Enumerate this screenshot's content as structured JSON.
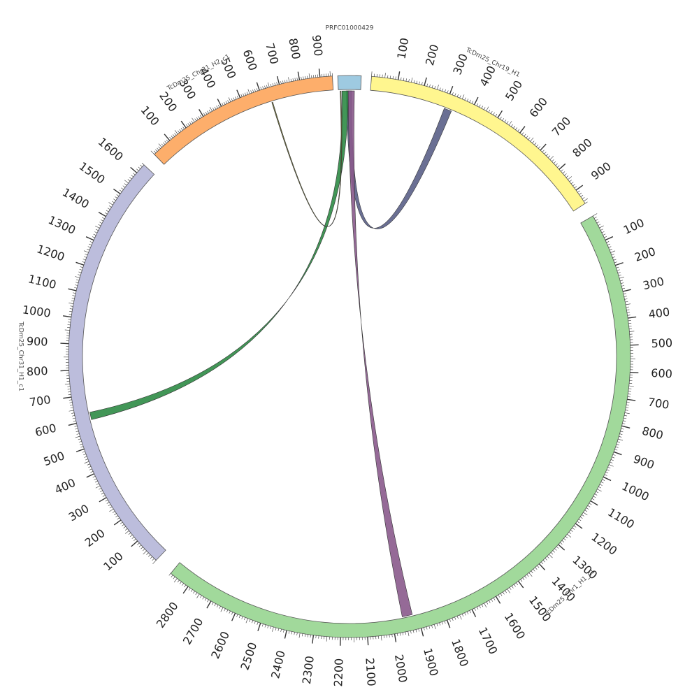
{
  "chart_data": {
    "type": "circos",
    "segments": [
      {
        "id": "prfc",
        "name": "PRFC01000429",
        "length": 50,
        "color": "#9ecae1",
        "start_deg": -2.4,
        "end_deg": 2.4,
        "label_interval": null,
        "tick_labels": []
      },
      {
        "id": "chr19",
        "name": "TcDm25_Chr19_H1",
        "length": 960,
        "color": "#fff68f",
        "start_deg": 4.5,
        "end_deg": 57.0,
        "label_interval": 100,
        "tick_labels": [
          "100",
          "200",
          "300",
          "400",
          "500",
          "600",
          "700",
          "800",
          "900"
        ]
      },
      {
        "id": "chr1",
        "name": "TcDm25_Chr1_H1_c1",
        "length": 2880,
        "color": "#a1d99b",
        "start_deg": 60.0,
        "end_deg": 219.5,
        "label_interval": 100,
        "tick_labels": [
          "100",
          "200",
          "300",
          "400",
          "500",
          "600",
          "700",
          "800",
          "900",
          "1000",
          "1100",
          "1200",
          "1300",
          "1400",
          "1500",
          "1600",
          "1700",
          "1800",
          "1900",
          "2000",
          "2100",
          "2200",
          "2300",
          "2400",
          "2500",
          "2600",
          "2700",
          "2800"
        ]
      },
      {
        "id": "chr31h1",
        "name": "TcDm25_Chr31_H1_c1",
        "length": 1640,
        "color": "#bcbddc",
        "start_deg": 223.5,
        "end_deg": 313.0,
        "label_interval": 100,
        "tick_labels": [
          "100",
          "200",
          "300",
          "400",
          "500",
          "600",
          "700",
          "800",
          "900",
          "1000",
          "1100",
          "1200",
          "1300",
          "1400",
          "1500",
          "1600"
        ]
      },
      {
        "id": "chr31h2",
        "name": "TcDm25_Chr31_H2_c1",
        "length": 960,
        "color": "#fdae6b",
        "start_deg": 316.0,
        "end_deg": 356.5,
        "label_interval": 100,
        "tick_labels": [
          "100",
          "200",
          "300",
          "400",
          "500",
          "600",
          "700",
          "800",
          "900"
        ]
      }
    ],
    "links": [
      {
        "from": "prfc",
        "from_range": [
          18,
          30
        ],
        "to": "chr19",
        "to_range": [
          300,
          330
        ],
        "color": "#5a5f87"
      },
      {
        "from": "prfc",
        "from_range": [
          8,
          22
        ],
        "to": "chr31h1",
        "to_range": [
          600,
          630
        ],
        "color": "#2e8b45"
      },
      {
        "from": "prfc",
        "from_range": [
          22,
          36
        ],
        "to": "chr1",
        "to_range": [
          1920,
          1960
        ],
        "color": "#8a5a8c"
      },
      {
        "from": "prfc",
        "from_range": [
          4,
          6
        ],
        "to": "chr31h2",
        "to_range": [
          640,
          645
        ],
        "color": "#6b6b2a"
      }
    ]
  }
}
